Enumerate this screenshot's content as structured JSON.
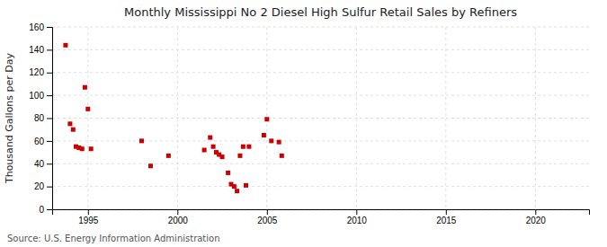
{
  "chart_data": {
    "type": "scatter",
    "title": "Monthly Mississippi No 2 Diesel High Sulfur Retail Sales by Refiners",
    "y_label": "Thousand Gallons per Day",
    "annotation": "Source: U.S. Energy Information Administration",
    "x": [
      1993.75,
      1994.0,
      1994.17,
      1994.33,
      1994.5,
      1994.67,
      1994.83,
      1995.0,
      1995.17,
      1998.0,
      1998.5,
      1999.5,
      2001.5,
      2001.83,
      2002.0,
      2002.17,
      2002.33,
      2002.5,
      2002.83,
      2003.0,
      2003.17,
      2003.33,
      2003.5,
      2003.67,
      2003.83,
      2004.0,
      2004.83,
      2005.0,
      2005.25,
      2005.67,
      2005.83
    ],
    "values": [
      144,
      75,
      70,
      55,
      54,
      53,
      107,
      88,
      53,
      60,
      38,
      47,
      52,
      63,
      55,
      50,
      48,
      46,
      32,
      22,
      20,
      16,
      47,
      55,
      21,
      55,
      65,
      79,
      60,
      59,
      47
    ],
    "color": "#cc0000",
    "marker": "square",
    "xlim": [
      1993.0,
      2023.0
    ],
    "xticks": [
      1995,
      2000,
      2005,
      2010,
      2015,
      2020
    ],
    "ylim": [
      0,
      160
    ],
    "yticks": [
      0,
      20,
      40,
      60,
      80,
      100,
      120,
      140,
      160
    ],
    "grid": true
  }
}
